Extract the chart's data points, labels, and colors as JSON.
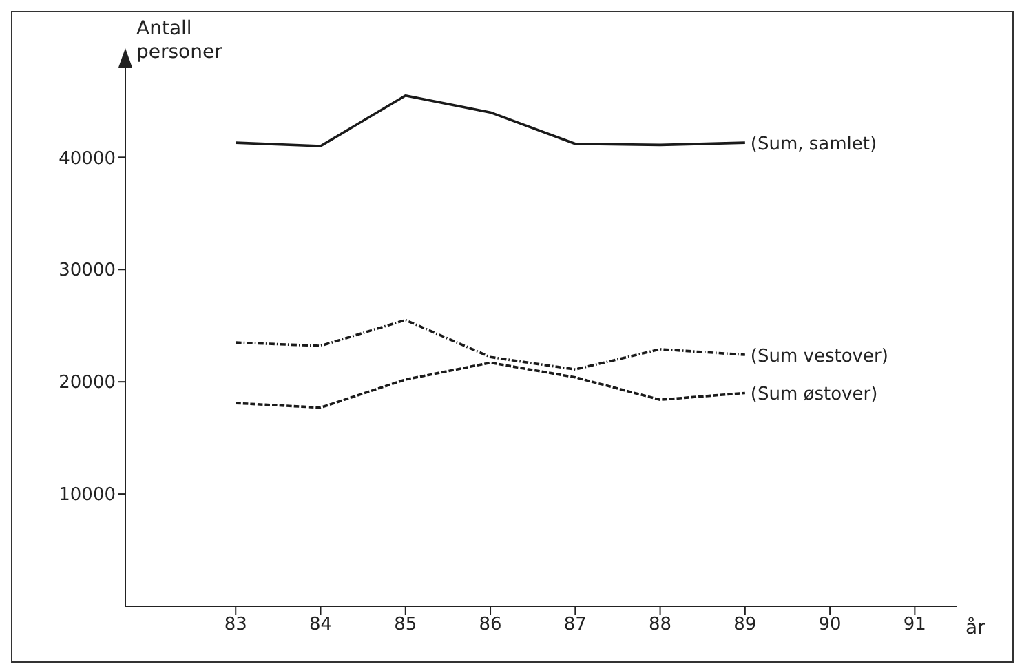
{
  "chart_data": {
    "type": "line",
    "ylabel": "Antall personer",
    "xlabel": "år",
    "x": [
      83,
      84,
      85,
      86,
      87,
      88,
      89
    ],
    "series": [
      {
        "name": "(Sum, samlet)",
        "color": "#1a1a1a",
        "line_style": "solid",
        "values": [
          41300,
          41000,
          45500,
          44000,
          41200,
          41100,
          41300
        ]
      },
      {
        "name": "(Sum vestover)",
        "color": "#1a1a1a",
        "line_style": "dashdot",
        "values": [
          23500,
          23200,
          25500,
          22200,
          21100,
          22900,
          22400
        ]
      },
      {
        "name": "(Sum østover)",
        "color": "#1a1a1a",
        "line_style": "dashed",
        "values": [
          18100,
          17700,
          20200,
          21700,
          20400,
          18400,
          19000
        ]
      }
    ],
    "xlim": [
      81.7,
      91.5
    ],
    "xticks": [
      83,
      84,
      85,
      86,
      87,
      88,
      89,
      90,
      91
    ],
    "ylim": [
      0,
      48000
    ],
    "yticks": [
      10000,
      20000,
      30000,
      40000
    ],
    "grid": false,
    "legend": false,
    "marker": "none"
  }
}
